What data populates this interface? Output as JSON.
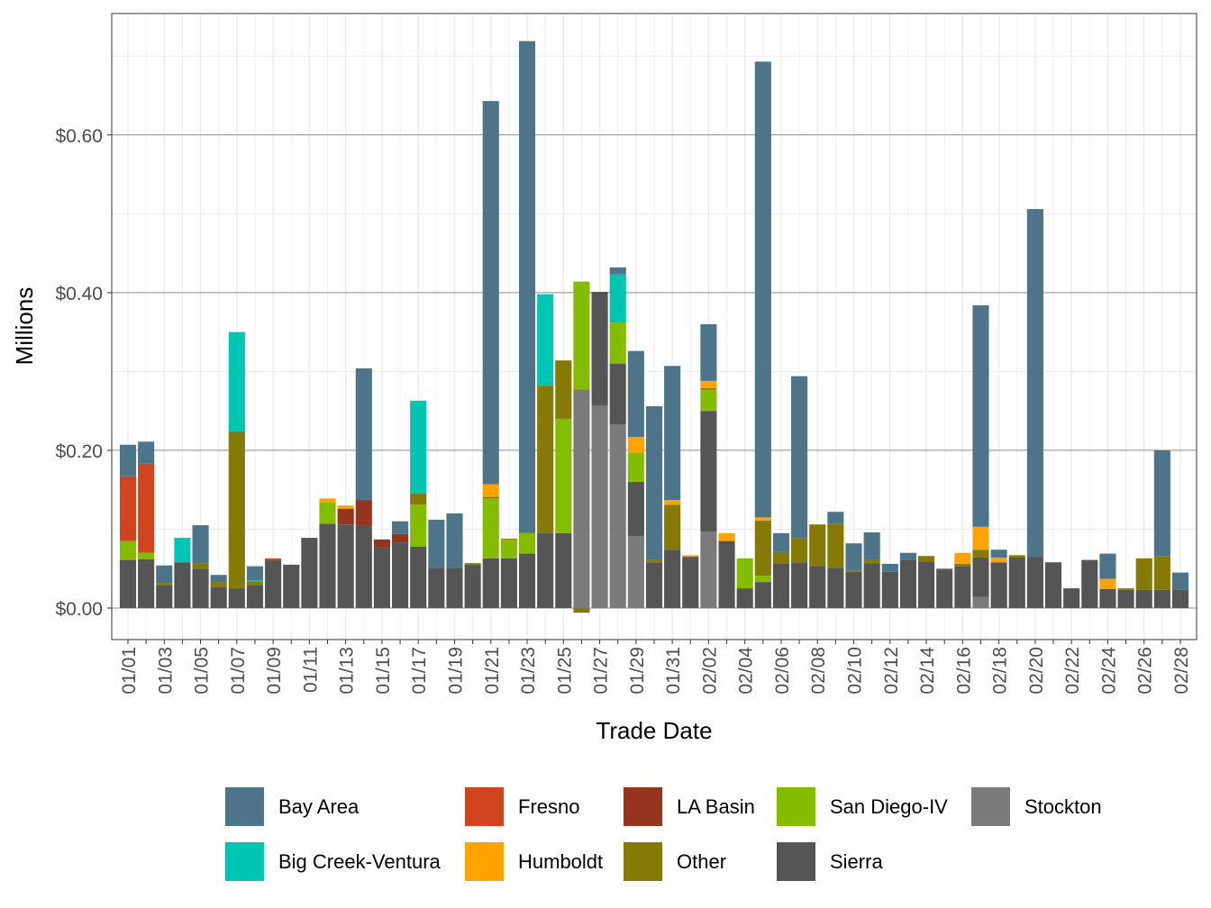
{
  "chart_data": {
    "type": "bar",
    "stacked": true,
    "title": "",
    "xlabel": "Trade Date",
    "ylabel": "Millions",
    "ylim": [
      -0.04,
      0.754
    ],
    "y_ticks": [
      0,
      0.2,
      0.4,
      0.6
    ],
    "y_tick_labels": [
      "$0.00",
      "$0.20",
      "$0.40",
      "$0.60"
    ],
    "grid": true,
    "legend_position": "bottom",
    "categories": [
      "01/01",
      "01/02",
      "01/03",
      "01/04",
      "01/05",
      "01/06",
      "01/07",
      "01/08",
      "01/09",
      "01/10",
      "01/11",
      "01/12",
      "01/13",
      "01/14",
      "01/15",
      "01/16",
      "01/17",
      "01/18",
      "01/19",
      "01/20",
      "01/21",
      "01/22",
      "01/23",
      "01/24",
      "01/25",
      "01/26",
      "01/27",
      "01/28",
      "01/29",
      "01/30",
      "01/31",
      "02/01",
      "02/02",
      "02/03",
      "02/04",
      "02/05",
      "02/06",
      "02/07",
      "02/08",
      "02/09",
      "02/10",
      "02/11",
      "02/12",
      "02/13",
      "02/14",
      "02/15",
      "02/16",
      "02/17",
      "02/18",
      "02/19",
      "02/20",
      "02/21",
      "02/22",
      "02/23",
      "02/24",
      "02/25",
      "02/26",
      "02/27",
      "02/28"
    ],
    "x_tick_labels": [
      "01/01",
      "01/03",
      "01/05",
      "01/07",
      "01/09",
      "01/11",
      "01/13",
      "01/15",
      "01/17",
      "01/19",
      "01/21",
      "01/23",
      "01/25",
      "01/27",
      "01/29",
      "01/31",
      "02/02",
      "02/04",
      "02/06",
      "02/08",
      "02/10",
      "02/12",
      "02/14",
      "02/16",
      "02/18",
      "02/20",
      "02/22",
      "02/24",
      "02/26",
      "02/28"
    ],
    "series": [
      {
        "name": "Stockton",
        "color": "#7a7a7a",
        "values": [
          0,
          0,
          0,
          0,
          0,
          0,
          0,
          0,
          0,
          0,
          0,
          0,
          0,
          0,
          0,
          0,
          0,
          0,
          0,
          0,
          0,
          0,
          0,
          0,
          0,
          0.277,
          0.257,
          0.233,
          0.091,
          0,
          0,
          0,
          0.097,
          0,
          0,
          0,
          0,
          0,
          0,
          0,
          0,
          0,
          0,
          0,
          0,
          0,
          0,
          0.014,
          0,
          0,
          0,
          0,
          0,
          0,
          0,
          0,
          0,
          0,
          0
        ]
      },
      {
        "name": "Sierra",
        "color": "#555555",
        "values": [
          0.061,
          0.062,
          0.029,
          0.058,
          0.05,
          0.027,
          0.025,
          0.029,
          0.061,
          0.055,
          0.089,
          0.107,
          0.106,
          0.104,
          0.077,
          0.083,
          0.078,
          0.051,
          0.051,
          0.055,
          0.063,
          0.063,
          0.069,
          0.095,
          0.095,
          0,
          0.144,
          0.077,
          0.069,
          0.058,
          0.074,
          0.065,
          0.153,
          0.085,
          0.025,
          0.033,
          0.056,
          0.058,
          0.053,
          0.051,
          0.046,
          0.057,
          0.046,
          0.061,
          0.059,
          0.049,
          0.053,
          0.05,
          0.058,
          0.064,
          0.065,
          0.058,
          0.025,
          0.061,
          0.024,
          0.023,
          0.023,
          0.023,
          0.023
        ]
      },
      {
        "name": "San Diego-IV",
        "color": "#84bd00",
        "values": [
          0.024,
          0.008,
          0,
          0,
          0,
          0,
          0,
          0,
          0,
          0,
          0,
          0.027,
          0,
          0,
          0,
          0,
          0.053,
          0,
          0,
          0,
          0.076,
          0.024,
          0.026,
          0,
          0.145,
          0.137,
          0,
          0.052,
          0.037,
          0,
          0,
          0,
          0.027,
          0,
          0.038,
          0.008,
          0,
          0,
          0,
          0,
          0,
          0,
          0,
          0,
          0,
          0,
          0,
          0,
          0,
          0,
          0,
          0,
          0,
          0,
          0,
          0,
          0,
          0,
          0
        ]
      },
      {
        "name": "Other",
        "color": "#847a05",
        "values": [
          0,
          0,
          0.002,
          0,
          0.007,
          0.006,
          0.199,
          0.005,
          0,
          0,
          0,
          0,
          0,
          0,
          0,
          0,
          0.014,
          0,
          0,
          0.002,
          0.002,
          0.001,
          0,
          0.187,
          0.074,
          -0.006,
          0,
          0,
          0,
          0.003,
          0.057,
          0,
          0.002,
          0,
          0,
          0.07,
          0.015,
          0.031,
          0.053,
          0.056,
          0.002,
          0.004,
          0,
          0,
          0.007,
          0.001,
          0.003,
          0.01,
          0,
          0.003,
          0,
          0,
          0,
          0,
          0,
          0.002,
          0.04,
          0.043,
          0
        ]
      },
      {
        "name": "LA Basin",
        "color": "#96341f",
        "values": [
          0,
          0,
          0,
          0,
          0,
          0,
          0,
          0,
          0,
          0,
          0,
          0,
          0.02,
          0.033,
          0.01,
          0.011,
          0,
          0,
          0,
          0,
          0,
          0,
          0,
          0,
          0,
          0,
          0,
          0,
          0,
          0,
          0,
          0,
          0,
          0,
          0,
          0,
          0,
          0,
          0,
          0,
          0,
          0,
          0,
          0,
          0,
          0,
          0,
          0,
          0,
          0,
          0,
          0,
          0,
          0,
          0,
          0,
          0,
          0,
          0
        ]
      },
      {
        "name": "Humboldt",
        "color": "#ffa300",
        "values": [
          0,
          0,
          0,
          0,
          0,
          0,
          0,
          0,
          0,
          0,
          0,
          0.005,
          0.004,
          0,
          0,
          0,
          0,
          0,
          0,
          0,
          0.016,
          0,
          0,
          0,
          0,
          0,
          0,
          0,
          0.02,
          0,
          0.006,
          0.002,
          0.009,
          0.01,
          0,
          0.004,
          0,
          0,
          0,
          0,
          0,
          0,
          0,
          0,
          0,
          0,
          0.014,
          0.029,
          0.006,
          0,
          0,
          0,
          0,
          0,
          0.013,
          0,
          0,
          0,
          0
        ]
      },
      {
        "name": "Fresno",
        "color": "#d0451f",
        "values": [
          0.082,
          0.113,
          0,
          0,
          0,
          0,
          0,
          0,
          0.002,
          0,
          0,
          0,
          0,
          0,
          0,
          0,
          0,
          0,
          0,
          0,
          0,
          0,
          0,
          0,
          0,
          0,
          0,
          0,
          0,
          0,
          0,
          0,
          0,
          0,
          0,
          0,
          0,
          0,
          0,
          0,
          0,
          0,
          0,
          0,
          0,
          0,
          0,
          0,
          0,
          0,
          0,
          0,
          0,
          0,
          0,
          0,
          0,
          0,
          0
        ]
      },
      {
        "name": "Big Creek-Ventura",
        "color": "#00c5b2",
        "values": [
          0,
          0,
          0,
          0.031,
          0,
          0,
          0.126,
          0.001,
          0,
          0,
          0,
          0,
          0,
          0,
          0,
          0,
          0.118,
          0,
          0,
          0,
          0,
          0,
          0,
          0.116,
          0,
          0,
          0,
          0.061,
          0,
          0,
          0,
          0,
          0,
          0,
          0,
          0,
          0,
          0,
          0,
          0,
          0,
          0,
          0,
          0,
          0,
          0,
          0,
          0,
          0,
          0,
          0,
          0,
          0,
          0,
          0,
          0,
          0,
          0,
          0
        ]
      },
      {
        "name": "Bay Area",
        "color": "#4e7489",
        "values": [
          0.04,
          0.028,
          0.023,
          0,
          0.048,
          0.009,
          0,
          0.018,
          0,
          0,
          0,
          0,
          0,
          0.167,
          0,
          0.016,
          0,
          0.061,
          0.069,
          0,
          0.486,
          0,
          0.624,
          0,
          0,
          0,
          0,
          0.009,
          0.109,
          0.195,
          0.17,
          0,
          0.072,
          0,
          0,
          0.578,
          0.024,
          0.205,
          0,
          0.015,
          0.034,
          0.035,
          0.01,
          0.009,
          0,
          0,
          0,
          0.281,
          0.01,
          0,
          0.441,
          0,
          0,
          0,
          0.032,
          0,
          0,
          0.134,
          0.022
        ]
      }
    ],
    "legend": {
      "rows": [
        [
          "Bay Area",
          "Fresno",
          "LA Basin",
          "San Diego-IV",
          "Stockton"
        ],
        [
          "Big Creek-Ventura",
          "Humboldt",
          "Other",
          "Sierra"
        ]
      ]
    }
  }
}
